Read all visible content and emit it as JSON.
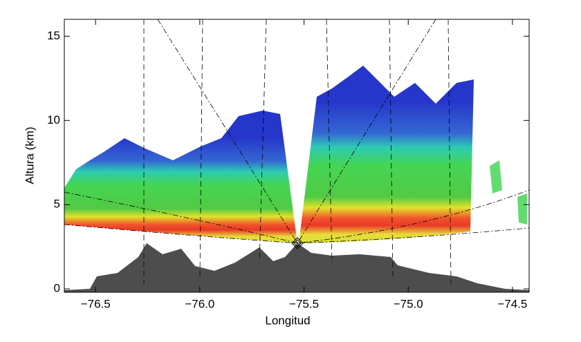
{
  "chart_data": {
    "type": "radar-rhi",
    "x_label": "Longitud",
    "y_label": "Altura (km)",
    "xlim": [
      -76.65,
      -74.42
    ],
    "ylim": [
      -0.2,
      16
    ],
    "xticks": [
      {
        "value": -76.5,
        "label": "−76.5"
      },
      {
        "value": -76.0,
        "label": "−76.0"
      },
      {
        "value": -75.5,
        "label": "−75.5"
      },
      {
        "value": -75.0,
        "label": "−75.0"
      },
      {
        "value": -74.5,
        "label": "−74.5"
      }
    ],
    "yticks": [
      0,
      5,
      10,
      15
    ]
  }
}
